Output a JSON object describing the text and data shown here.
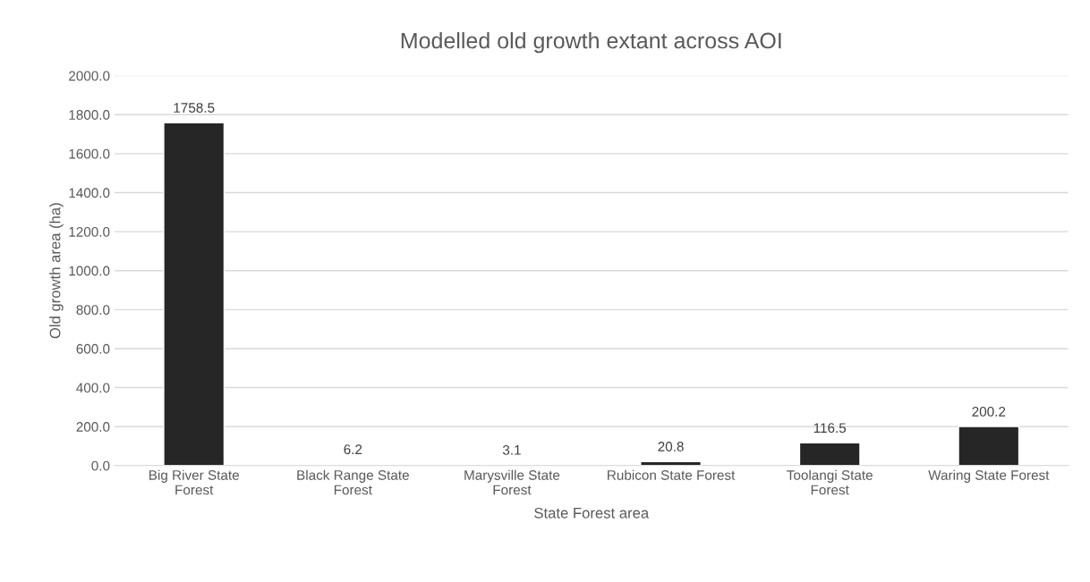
{
  "chart_data": {
    "type": "bar",
    "title": "Modelled old growth extant across AOI",
    "xlabel": "State Forest area",
    "ylabel": "Old growth area (ha)",
    "categories": [
      "Big River State Forest",
      "Black Range State Forest",
      "Marysville State Forest",
      "Rubicon State Forest",
      "Toolangi State Forest",
      "Waring State Forest"
    ],
    "values": [
      1758.5,
      6.2,
      3.1,
      20.8,
      116.5,
      200.2
    ],
    "color": "#262626",
    "ylim": [
      0,
      2000
    ],
    "yticks": [
      {
        "value": 0,
        "label": "0.0"
      },
      {
        "value": 200,
        "label": "200.0"
      },
      {
        "value": 400,
        "label": "400.0"
      },
      {
        "value": 600,
        "label": "600.0"
      },
      {
        "value": 800,
        "label": "800.0"
      },
      {
        "value": 1000,
        "label": "1000.0"
      },
      {
        "value": 1200,
        "label": "1200.0"
      },
      {
        "value": 1400,
        "label": "1400.0"
      },
      {
        "value": 1600,
        "label": "1600.0"
      },
      {
        "value": 1800,
        "label": "1800.0"
      },
      {
        "value": 2000,
        "label": "2000.0"
      }
    ],
    "grid": "y",
    "data_labels": true
  }
}
